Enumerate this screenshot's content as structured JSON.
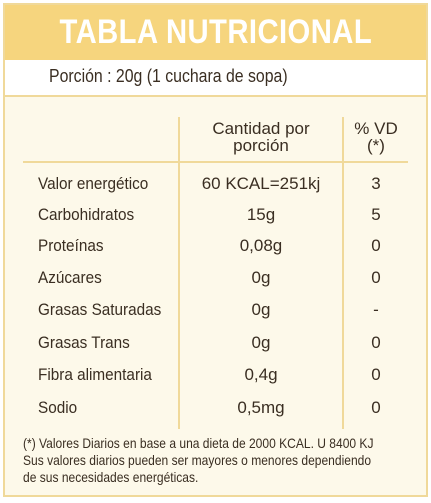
{
  "title": "TABLA NUTRICIONAL",
  "portion": "Porción : 20g (1 cuchara de sopa)",
  "headers": {
    "quantity_line1": "Cantidad por",
    "quantity_line2": "porción",
    "vd_line1": "% VD",
    "vd_line2": "(*)"
  },
  "rows": [
    {
      "name": "Valor energético",
      "qty": "60 KCAL=251kj",
      "vd": "3"
    },
    {
      "name": "Carbohidratos",
      "qty": "15g",
      "vd": "5"
    },
    {
      "name": "Proteínas",
      "qty": "0,08g",
      "vd": "0"
    },
    {
      "name": "Azúcares",
      "qty": "0g",
      "vd": "0"
    },
    {
      "name": "Grasas Saturadas",
      "qty": "0g",
      "vd": "-"
    },
    {
      "name": "Grasas Trans",
      "qty": "0g",
      "vd": "0"
    },
    {
      "name": "Fibra alimentaria",
      "qty": "0,4g",
      "vd": "0"
    },
    {
      "name": "Sodio",
      "qty": "0,5mg",
      "vd": "0"
    }
  ],
  "footnote": {
    "line1": "(*) Valores Diarios en base a una dieta de 2000 KCAL. U 8400 KJ",
    "line2": "Sus valores diarios pueden ser mayores o menores dependiendo",
    "line3": "de sus necesidades energéticas."
  },
  "colors": {
    "accent": "#f6d57e",
    "border": "#f0d99a",
    "background": "#fdf9ea",
    "text": "#3a2e22"
  }
}
